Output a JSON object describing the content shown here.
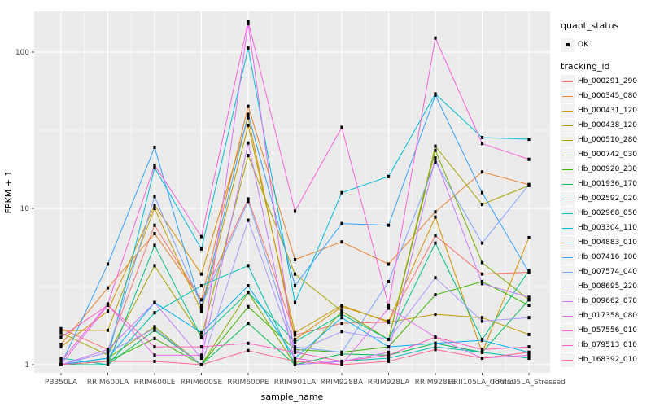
{
  "figure": {
    "background": "#ffffff",
    "panel_background": "#ebebeb",
    "grid_major_color": "#ffffff",
    "grid_minor_color": "#ffffff",
    "axis_text_color": "#4d4d4d",
    "marker_color": "#000000"
  },
  "legend": {
    "quant_status_title": "quant_status",
    "quant_status_ok_label": "OK",
    "tracking_title": "tracking_id"
  },
  "chart_data": {
    "type": "line",
    "title": "",
    "xlabel": "sample_name",
    "ylabel": "FPKM + 1",
    "y_scale": "log10",
    "y_ticks": [
      1,
      10,
      100
    ],
    "y_minor": [
      3.1623,
      31.6228
    ],
    "ylim": [
      0.93,
      180
    ],
    "grid": true,
    "legend_position": "right",
    "categories": [
      "PB350LA",
      "RRIM600LA",
      "RRIM600LE",
      "RRIM600SE",
      "RRIM600PE",
      "RRIM901LA",
      "RRIM928BA",
      "RRIM928LA",
      "RRIM928LE",
      "RRII105LA_Control",
      "RRII105LA_Stressed"
    ],
    "series": [
      {
        "name": "Hb_000291_290",
        "color": "#F8766D",
        "values": [
          1.7,
          1.25,
          7.8,
          2.6,
          11.5,
          1.55,
          1.84,
          1.87,
          6.7,
          3.8,
          3.9
        ]
      },
      {
        "name": "Hb_000345_080",
        "color": "#EA8331",
        "values": [
          1.35,
          3.1,
          6.9,
          2.6,
          45,
          4.7,
          6.1,
          4.4,
          9.5,
          17.1,
          14.2
        ]
      },
      {
        "name": "Hb_000431_120",
        "color": "#D89000",
        "values": [
          1.3,
          2.2,
          10.5,
          3.8,
          38,
          1.45,
          2.35,
          1.9,
          8.8,
          1.2,
          6.5
        ]
      },
      {
        "name": "Hb_000438_120",
        "color": "#C09B00",
        "values": [
          1.65,
          1.66,
          10.0,
          2.2,
          34,
          1.6,
          2.4,
          1.87,
          2.1,
          2.0,
          1.56
        ]
      },
      {
        "name": "Hb_000510_280",
        "color": "#A3A500",
        "values": [
          1.6,
          1.15,
          4.3,
          1.5,
          21.8,
          3.8,
          2.2,
          1.45,
          25,
          10.6,
          14.0
        ]
      },
      {
        "name": "Hb_000742_030",
        "color": "#7CAE00",
        "values": [
          1.0,
          1.1,
          1.75,
          1.0,
          2.9,
          1.0,
          2.2,
          1.45,
          23.5,
          4.5,
          2.6
        ]
      },
      {
        "name": "Hb_000920_230",
        "color": "#39B600",
        "values": [
          1.0,
          1.05,
          1.47,
          1.0,
          2.35,
          1.25,
          1.2,
          1.3,
          2.8,
          3.4,
          2.4
        ]
      },
      {
        "name": "Hb_001936_170",
        "color": "#00BB4E",
        "values": [
          1.0,
          1.0,
          1.66,
          1.0,
          1.84,
          1.0,
          1.17,
          1.15,
          1.37,
          1.2,
          2.6
        ]
      },
      {
        "name": "Hb_002592_020",
        "color": "#00C087",
        "values": [
          1.0,
          1.0,
          5.8,
          1.5,
          2.9,
          1.4,
          2.1,
          1.45,
          6.0,
          1.45,
          4.0
        ]
      },
      {
        "name": "Hb_002968_050",
        "color": "#00C0B2",
        "values": [
          1.1,
          1.0,
          2.15,
          3.2,
          4.3,
          1.0,
          1.05,
          1.1,
          1.3,
          1.2,
          1.1
        ]
      },
      {
        "name": "Hb_003304_110",
        "color": "#00BCD8",
        "values": [
          1.0,
          1.1,
          18.2,
          5.5,
          106,
          2.5,
          12.6,
          16,
          54,
          28.4,
          27.7
        ]
      },
      {
        "name": "Hb_004883_010",
        "color": "#00B0F6",
        "values": [
          1.0,
          1.1,
          2.5,
          1.6,
          3.2,
          1.1,
          2.0,
          1.3,
          1.37,
          1.43,
          1.2
        ]
      },
      {
        "name": "Hb_007416_100",
        "color": "#35A2FF",
        "values": [
          1.0,
          4.4,
          24.6,
          2.3,
          40,
          3.2,
          8.0,
          7.8,
          53,
          12.6,
          3.9
        ]
      },
      {
        "name": "Hb_007574_040",
        "color": "#7CA4FF",
        "values": [
          1.0,
          1.2,
          11.9,
          2.4,
          11.1,
          1.3,
          1.2,
          3.4,
          19.8,
          6.0,
          14.2
        ]
      },
      {
        "name": "Hb_008695_220",
        "color": "#A99AFF",
        "values": [
          1.0,
          1.2,
          1.7,
          1.0,
          8.4,
          1.2,
          1.63,
          1.45,
          3.6,
          1.9,
          2.0
        ]
      },
      {
        "name": "Hb_009662_070",
        "color": "#C77CFF",
        "values": [
          1.0,
          1.25,
          2.5,
          1.1,
          26.2,
          1.0,
          1.05,
          1.2,
          21,
          3.3,
          2.7
        ]
      },
      {
        "name": "Hb_017358_080",
        "color": "#E76BF3",
        "values": [
          1.0,
          2.4,
          1.15,
          1.15,
          152,
          1.1,
          1.0,
          2.3,
          1.5,
          1.1,
          1.15
        ]
      },
      {
        "name": "Hb_057556_010",
        "color": "#FA62DB",
        "values": [
          1.05,
          2.45,
          18.9,
          6.6,
          157,
          9.6,
          33,
          2.4,
          123,
          26,
          20.6
        ]
      },
      {
        "name": "Hb_079513_010",
        "color": "#FF62BC",
        "values": [
          1.5,
          2.4,
          1.3,
          1.3,
          1.37,
          1.2,
          1.05,
          1.15,
          1.5,
          1.25,
          1.3
        ]
      },
      {
        "name": "Hb_168392_010",
        "color": "#FF6A98",
        "values": [
          1.0,
          1.05,
          1.05,
          1.0,
          1.23,
          1.05,
          1.0,
          1.05,
          1.25,
          1.1,
          1.2
        ]
      }
    ]
  }
}
